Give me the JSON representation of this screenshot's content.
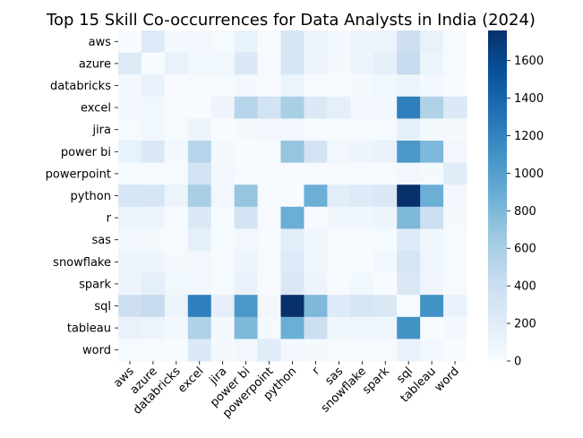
{
  "chart_data": {
    "type": "heatmap",
    "title": "Top 15 Skill Co-occurrences for Data Analysts in India (2024)",
    "xlabel": "",
    "ylabel": "",
    "categories": [
      "aws",
      "azure",
      "databricks",
      "excel",
      "jira",
      "power bi",
      "powerpoint",
      "python",
      "r",
      "sas",
      "snowflake",
      "spark",
      "sql",
      "tableau",
      "word"
    ],
    "values": [
      [
        0,
        230,
        40,
        50,
        20,
        130,
        15,
        290,
        110,
        40,
        90,
        90,
        380,
        120,
        20
      ],
      [
        230,
        0,
        120,
        60,
        60,
        250,
        10,
        300,
        90,
        30,
        90,
        160,
        440,
        110,
        10
      ],
      [
        40,
        120,
        0,
        20,
        20,
        40,
        10,
        100,
        20,
        10,
        30,
        60,
        100,
        40,
        5
      ],
      [
        50,
        60,
        20,
        0,
        90,
        520,
        330,
        600,
        250,
        160,
        40,
        40,
        1230,
        560,
        250
      ],
      [
        20,
        60,
        20,
        90,
        0,
        30,
        50,
        50,
        20,
        20,
        20,
        20,
        160,
        30,
        30
      ],
      [
        130,
        250,
        40,
        520,
        30,
        0,
        20,
        700,
        330,
        50,
        90,
        120,
        1050,
        800,
        50
      ],
      [
        15,
        10,
        10,
        330,
        50,
        20,
        0,
        20,
        10,
        10,
        10,
        10,
        50,
        30,
        200
      ],
      [
        290,
        300,
        100,
        600,
        50,
        700,
        20,
        0,
        880,
        190,
        230,
        260,
        1760,
        880,
        40
      ],
      [
        110,
        90,
        20,
        250,
        20,
        330,
        10,
        880,
        0,
        70,
        70,
        90,
        800,
        380,
        30
      ],
      [
        40,
        30,
        10,
        160,
        20,
        50,
        10,
        190,
        70,
        0,
        20,
        20,
        230,
        70,
        20
      ],
      [
        90,
        90,
        30,
        40,
        20,
        90,
        10,
        230,
        70,
        20,
        0,
        60,
        300,
        80,
        20
      ],
      [
        90,
        160,
        60,
        40,
        20,
        120,
        10,
        260,
        90,
        20,
        60,
        0,
        260,
        80,
        10
      ],
      [
        380,
        440,
        100,
        1230,
        160,
        1050,
        50,
        1760,
        800,
        230,
        300,
        260,
        0,
        1100,
        120
      ],
      [
        120,
        110,
        40,
        560,
        30,
        800,
        30,
        880,
        380,
        70,
        80,
        80,
        1100,
        0,
        40
      ],
      [
        20,
        10,
        5,
        250,
        30,
        50,
        200,
        40,
        30,
        20,
        20,
        10,
        120,
        40,
        0
      ]
    ],
    "colorbar": {
      "min": 0,
      "max": 1760,
      "ticks": [
        0,
        200,
        400,
        600,
        800,
        1000,
        1200,
        1400,
        1600
      ],
      "cmap": "Blues",
      "color_low": "#f7fbff",
      "color_high": "#08306b"
    },
    "grid": false
  }
}
